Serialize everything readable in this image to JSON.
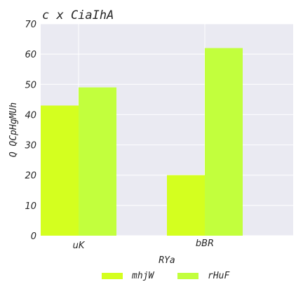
{
  "chart_data": {
    "type": "bar",
    "title": "c x CiaIhA",
    "xlabel": "RYa",
    "ylabel": "Q QCpHgMUh",
    "categories": [
      "uK",
      "bBR"
    ],
    "series": [
      {
        "name": "mhjW",
        "values": [
          43,
          20
        ],
        "color": "#d4ff1f"
      },
      {
        "name": "rHuF",
        "values": [
          49,
          62
        ],
        "color": "#c2ff3d"
      }
    ],
    "ylim": [
      0,
      70
    ],
    "yticks": [
      0,
      10,
      20,
      30,
      40,
      50,
      60,
      70
    ],
    "grid": true,
    "legend": "bottom-center",
    "background": "#eaeaf2"
  }
}
